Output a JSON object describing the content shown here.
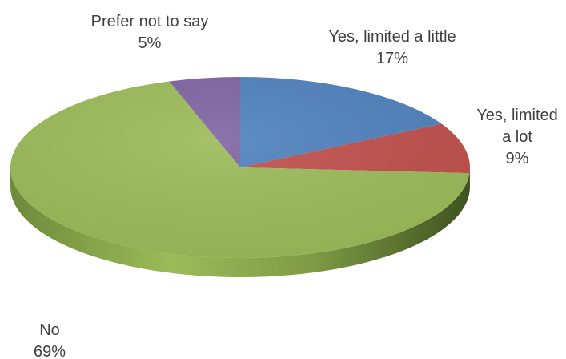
{
  "chart_data": {
    "type": "pie",
    "style": "3d",
    "title": "",
    "slices": [
      {
        "label_lines": [
          "Yes, limited a little"
        ],
        "label": "Yes, limited a little",
        "value": 17,
        "value_label": "17%",
        "color": "#4f81bd",
        "side_color": "#2f4f7a"
      },
      {
        "label_lines": [
          "Yes, limited",
          "a lot"
        ],
        "label": "Yes, limited a lot",
        "value": 9,
        "value_label": "9%",
        "color": "#c0504d",
        "side_color": "#7a2c2a"
      },
      {
        "label_lines": [
          "No"
        ],
        "label": "No",
        "value": 69,
        "value_label": "69%",
        "color": "#9bbb59",
        "side_color": "#5f7a2c"
      },
      {
        "label_lines": [
          "Prefer not to say"
        ],
        "label": "Prefer not to say",
        "value": 5,
        "value_label": "5%",
        "color": "#8064a2",
        "side_color": "#4e3a68"
      }
    ]
  }
}
